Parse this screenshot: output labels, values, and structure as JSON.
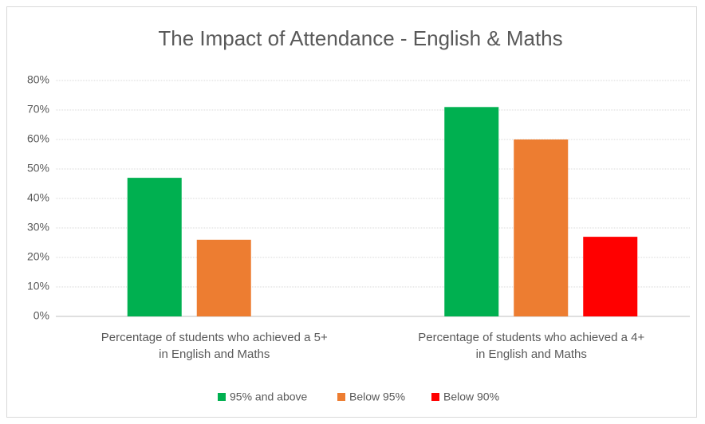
{
  "chart_data": {
    "type": "bar",
    "title": "The Impact of Attendance - English & Maths",
    "categories": [
      "Percentage of students who achieved a 5+ in English and Maths",
      "Percentage of students who achieved a 4+ in English and Maths"
    ],
    "series": [
      {
        "name": "95% and above",
        "color": "#00b050",
        "values": [
          47,
          71
        ]
      },
      {
        "name": "Below 95%",
        "color": "#ed7d31",
        "values": [
          26,
          60
        ]
      },
      {
        "name": "Below 90%",
        "color": "#ff0000",
        "values": [
          null,
          27
        ]
      }
    ],
    "ylim": [
      0,
      80
    ],
    "yticks": [
      {
        "value": 0,
        "label": "0%"
      },
      {
        "value": 10,
        "label": "10%"
      },
      {
        "value": 20,
        "label": "20%"
      },
      {
        "value": 30,
        "label": "30%"
      },
      {
        "value": 40,
        "label": "40%"
      },
      {
        "value": 50,
        "label": "50%"
      },
      {
        "value": 60,
        "label": "60%"
      },
      {
        "value": 70,
        "label": "70%"
      },
      {
        "value": 80,
        "label": "80%"
      }
    ],
    "grid": true,
    "legend": "bottom"
  }
}
